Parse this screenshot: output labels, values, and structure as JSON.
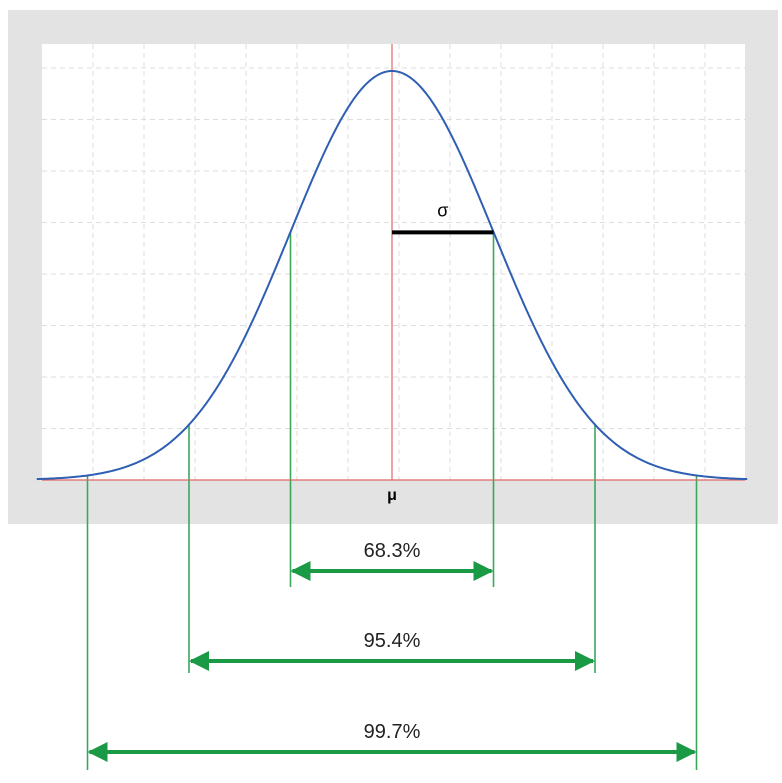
{
  "chart_data": {
    "type": "line",
    "distribution": "normal",
    "mean_label": "μ",
    "sigma_label": "σ",
    "x_range_sigma": [
      -3.5,
      3.5
    ],
    "grid": true,
    "bands": [
      {
        "k": 1,
        "label": "68.3%"
      },
      {
        "k": 2,
        "label": "95.4%"
      },
      {
        "k": 3,
        "label": "99.7%"
      }
    ],
    "colors": {
      "curve": "#2f5fb3",
      "mean_line": "#e06666",
      "band_lines": "#3aa85a",
      "arrows": "#1a9a45",
      "sigma_bar": "#000000",
      "frame": "#e3e3e3",
      "grid": "#dddddd"
    }
  }
}
